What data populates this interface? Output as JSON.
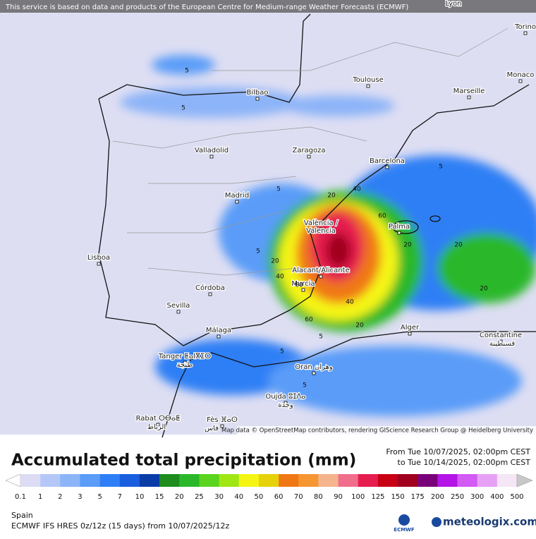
{
  "banner": "This service is based on data and products of the European Centre for Medium-range Weather Forecasts (ECMWF)",
  "map": {
    "cities": [
      "Lyon",
      "Torino",
      "Monaco",
      "Toulouse",
      "Marseille",
      "Bilbao",
      "Valladolid",
      "Zaragoza",
      "Barcelona",
      "Madrid",
      "València /",
      "Valencia",
      "Palma",
      "Lisboa",
      "Alacant/Alicante",
      "Murcia",
      "Córdoba",
      "Sevilla",
      "Málaga",
      "Alger",
      "Constantine",
      "قسنطينة",
      "Tanger ⵟⴰⵏⴳⵉⵔ",
      "طنجة",
      "Oran وهران",
      "Oujda ⵓⵊⴷⴰ",
      "وجدة",
      "Rabat ⵔⴱⴰⵟ",
      "الرباط",
      "Fès ⴼⴰⵙ",
      "فاس"
    ],
    "contour_labels": [
      "5",
      "5",
      "5",
      "5",
      "5",
      "5",
      "5",
      "5",
      "20",
      "20",
      "20",
      "20",
      "20",
      "20",
      "40",
      "40",
      "40",
      "60",
      "60",
      "60"
    ],
    "attribution": "Map data © OpenStreetMap contributors, rendering GIScience Research Group @ Heidelberg University"
  },
  "title": "Accumulated total precipitation (mm)",
  "period": {
    "from": "From Tue 10/07/2025, 02:00pm CEST",
    "to": "to Tue 10/14/2025, 02:00pm CEST"
  },
  "legend": {
    "ticks": [
      0.1,
      1,
      2,
      3,
      5,
      7,
      10,
      15,
      20,
      25,
      30,
      40,
      50,
      60,
      70,
      80,
      90,
      100,
      125,
      150,
      175,
      200,
      250,
      300,
      400,
      500
    ],
    "colors": [
      "#ffffff",
      "#dcdcf5",
      "#b4c8f8",
      "#8cb4f8",
      "#5a9cf8",
      "#2e7ff5",
      "#1a5ee0",
      "#0a3ca8",
      "#1e8c1e",
      "#2ab82a",
      "#5ad41e",
      "#a0e614",
      "#f5f514",
      "#e6d20a",
      "#f07814",
      "#f59632",
      "#f5b48c",
      "#f06e8c",
      "#e61e50",
      "#c80014",
      "#a0001e",
      "#780078",
      "#b414e6",
      "#d25af5",
      "#e6a0f5",
      "#f5e6f5",
      "#c8c8c8"
    ]
  },
  "region": "Spain",
  "model": "ECMWF IFS HRES 0z/12z (15 days) from 10/07/2025/12z",
  "logos": {
    "ecmwf": "ECMWF",
    "brand": "meteologix.com"
  }
}
